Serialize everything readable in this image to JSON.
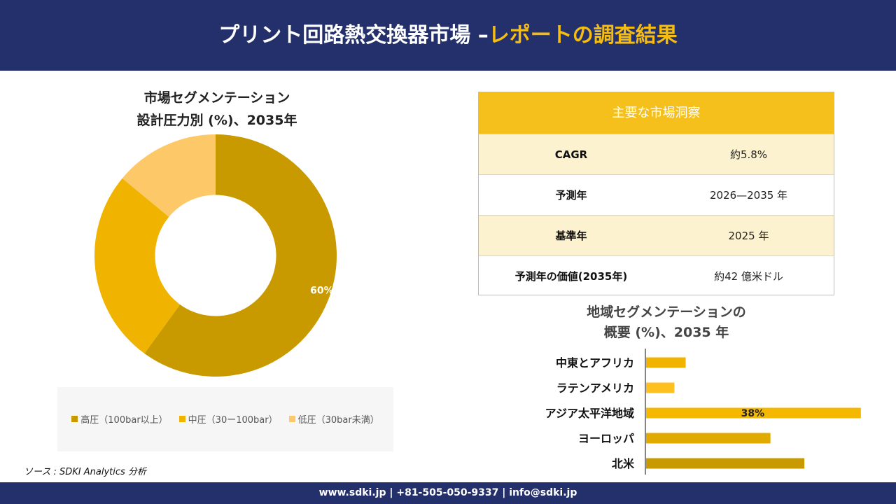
{
  "header": {
    "title_main": "プリント回路熱交換器市場 –",
    "title_accent": "レポートの調査結果"
  },
  "colors": {
    "navy": "#24306b",
    "gold": "#f5bd12",
    "high": "#c89a00",
    "mid": "#f0b400",
    "low": "#fdc868"
  },
  "insights": {
    "heading": "主要な市場洞察",
    "rows": [
      {
        "key": "CAGR",
        "value": "約5.8%"
      },
      {
        "key": "予測年",
        "value": "2026—2035 年"
      },
      {
        "key": "基準年",
        "value": "2025 年"
      },
      {
        "key": "予測年の価値(2035年)",
        "value": "約42 億米ドル"
      }
    ]
  },
  "source": "ソース : SDKI Analytics 分析",
  "footer": {
    "text": "www.sdki.jp | +81-505-050-9337 | info@sdki.jp"
  },
  "chart_data": [
    {
      "type": "pie",
      "title_line1": "市場セグメンテーション",
      "title_line2": "設計圧力別 (%)、2035年",
      "categories": [
        "高圧（100bar以上）",
        "中圧（30ー100bar）",
        "低圧（30bar未満）"
      ],
      "values": [
        60,
        26,
        14
      ],
      "colors": [
        "#c89a00",
        "#f0b400",
        "#fdc868"
      ],
      "data_labels": [
        "60%",
        "",
        ""
      ],
      "inner_radius_ratio": 0.5,
      "legend": "bottom"
    },
    {
      "type": "bar",
      "orientation": "horizontal",
      "title_line1": "地域セグメンテーションの",
      "title_line2": "概要 (%)、2035 年",
      "categories": [
        "中東とアフリカ",
        "ラテンアメリカ",
        "アジア太平洋地域",
        "ヨーロッパ",
        "北米"
      ],
      "values": [
        7,
        5,
        38,
        22,
        28
      ],
      "colors": [
        "#f0b400",
        "#fdc020",
        "#f5b800",
        "#e0aa00",
        "#c89a00"
      ],
      "data_labels": [
        "",
        "",
        "38%",
        "",
        ""
      ],
      "xlim": [
        0,
        40
      ],
      "grid": false
    }
  ]
}
